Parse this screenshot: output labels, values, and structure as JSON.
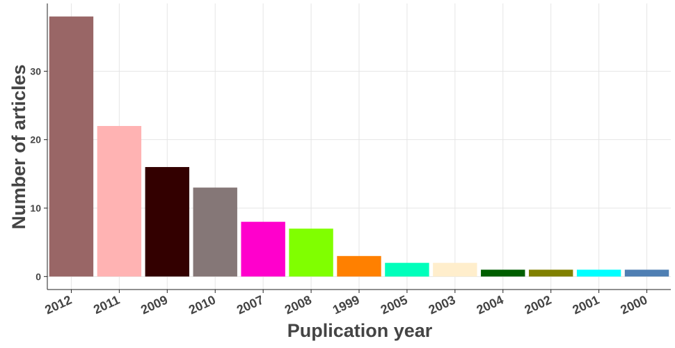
{
  "chart_data": {
    "type": "bar",
    "title": "",
    "xlabel": "Puplication year",
    "ylabel": "Number of articles",
    "categories": [
      "2012",
      "2011",
      "2009",
      "2010",
      "2007",
      "2008",
      "1999",
      "2005",
      "2003",
      "2004",
      "2002",
      "2001",
      "2000"
    ],
    "values": [
      38,
      22,
      16,
      13,
      8,
      7,
      3,
      2,
      2,
      1,
      1,
      1,
      1
    ],
    "colors": [
      "#996666",
      "#ffb3b3",
      "#330000",
      "#857777",
      "#ff00cc",
      "#80ff00",
      "#ff8000",
      "#00ffbb",
      "#ffeecc",
      "#005e00",
      "#808000",
      "#00ffff",
      "#4f7fb3"
    ],
    "yticks": [
      0,
      10,
      20,
      30
    ],
    "ylim": [
      -1.9,
      39.9
    ],
    "grid": true,
    "legend": "none"
  }
}
